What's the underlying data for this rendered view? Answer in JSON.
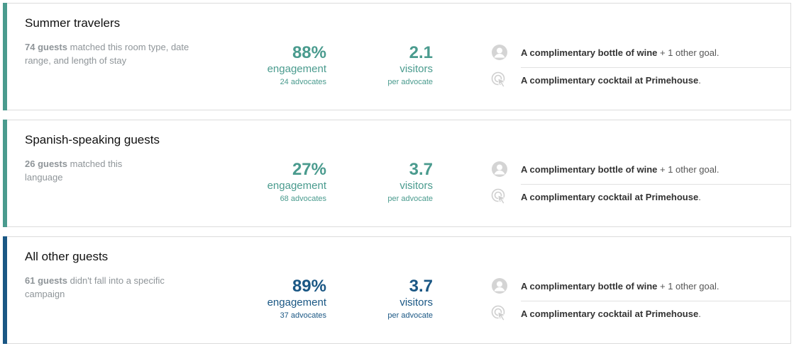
{
  "colors": {
    "teal": "#4a9b8e",
    "navy": "#1a5784",
    "muted": "#8f9599"
  },
  "segments": [
    {
      "name": "Summer travelers",
      "count": "74 guests",
      "desc_rest": "matched this room type, date range, and length of stay",
      "engagement_value": "88%",
      "engagement_label": "engagement",
      "advocates": "24 advocates",
      "visitors_value": "2.1",
      "visitors_label": "visitors",
      "visitors_sub": "per advocate",
      "goal1_bold": "A complimentary bottle of wine",
      "goal1_rest": " + 1 other goal.",
      "goal2_bold": "A complimentary cocktail at Primehouse",
      "goal2_rest": ".",
      "accent": "teal"
    },
    {
      "name": "Spanish-speaking guests",
      "count": "26 guests",
      "desc_rest": "matched this language",
      "engagement_value": "27%",
      "engagement_label": "engagement",
      "advocates": "68 advocates",
      "visitors_value": "3.7",
      "visitors_label": "visitors",
      "visitors_sub": "per advocate",
      "goal1_bold": "A complimentary bottle of wine",
      "goal1_rest": " + 1 other goal.",
      "goal2_bold": "A complimentary cocktail at Primehouse",
      "goal2_rest": ".",
      "accent": "teal"
    },
    {
      "name": "All other guests",
      "count": "61 guests",
      "desc_rest": "didn't fall into a specific campaign",
      "engagement_value": "89%",
      "engagement_label": "engagement",
      "advocates": "37 advocates",
      "visitors_value": "3.7",
      "visitors_label": "visitors",
      "visitors_sub": "per advocate",
      "goal1_bold": "A complimentary bottle of wine",
      "goal1_rest": " + 1 other goal.",
      "goal2_bold": "A complimentary cocktail at Primehouse",
      "goal2_rest": ".",
      "accent": "navy"
    }
  ]
}
